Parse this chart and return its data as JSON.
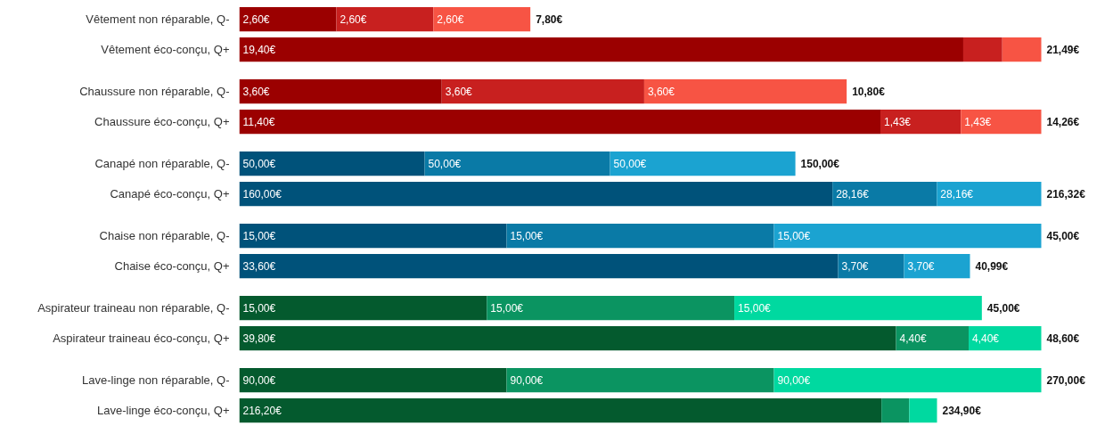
{
  "chart_data": [
    {
      "type": "bar",
      "orientation": "horizontal",
      "stacked": true,
      "tick_labels": "y",
      "categories": [
        "Vêtement non réparable, Q-",
        "Vêtement éco-conçu, Q+"
      ],
      "totals": [
        "7,80€",
        "21,49€"
      ],
      "series": [
        {
          "color": "#9b0000",
          "values": [
            2.6,
            19.4
          ],
          "value_labels": [
            "2,60€",
            "19,40€"
          ]
        },
        {
          "color": "#c8201f",
          "values": [
            2.6,
            1.045
          ],
          "value_labels": [
            "2,60€",
            null
          ]
        },
        {
          "color": "#f75444",
          "values": [
            2.6,
            1.045
          ],
          "value_labels": [
            "2,60€",
            null
          ]
        }
      ]
    },
    {
      "type": "bar",
      "orientation": "horizontal",
      "stacked": true,
      "tick_labels": "y",
      "categories": [
        "Chaussure non réparable, Q-",
        "Chaussure éco-conçu, Q+"
      ],
      "totals": [
        "10,80€",
        "14,26€"
      ],
      "series": [
        {
          "color": "#9b0000",
          "values": [
            3.6,
            11.4
          ],
          "value_labels": [
            "3,60€",
            "11,40€"
          ]
        },
        {
          "color": "#c8201f",
          "values": [
            3.6,
            1.43
          ],
          "value_labels": [
            "3,60€",
            "1,43€"
          ]
        },
        {
          "color": "#f75444",
          "values": [
            3.6,
            1.43
          ],
          "value_labels": [
            "3,60€",
            "1,43€"
          ]
        }
      ]
    },
    {
      "type": "bar",
      "orientation": "horizontal",
      "stacked": true,
      "tick_labels": "y",
      "categories": [
        "Canapé non réparable, Q-",
        "Canapé éco-conçu, Q+"
      ],
      "totals": [
        "150,00€",
        "216,32€"
      ],
      "series": [
        {
          "color": "#00527a",
          "values": [
            50,
            160
          ],
          "value_labels": [
            "50,00€",
            "160,00€"
          ]
        },
        {
          "color": "#0a7aa6",
          "values": [
            50,
            28.16
          ],
          "value_labels": [
            "50,00€",
            "28,16€"
          ]
        },
        {
          "color": "#1ba3d1",
          "values": [
            50,
            28.16
          ],
          "value_labels": [
            "50,00€",
            "28,16€"
          ]
        }
      ]
    },
    {
      "type": "bar",
      "orientation": "horizontal",
      "stacked": true,
      "tick_labels": "y",
      "categories": [
        "Chaise non réparable, Q-",
        "Chaise éco-conçu, Q+"
      ],
      "totals": [
        "45,00€",
        "40,99€"
      ],
      "series": [
        {
          "color": "#00527a",
          "values": [
            15,
            33.6
          ],
          "value_labels": [
            "15,00€",
            "33,60€"
          ]
        },
        {
          "color": "#0a7aa6",
          "values": [
            15,
            3.7
          ],
          "value_labels": [
            "15,00€",
            "3,70€"
          ]
        },
        {
          "color": "#1ba3d1",
          "values": [
            15,
            3.7
          ],
          "value_labels": [
            "15,00€",
            "3,70€"
          ]
        }
      ]
    },
    {
      "type": "bar",
      "orientation": "horizontal",
      "stacked": true,
      "tick_labels": "y",
      "categories": [
        "Aspirateur traineau non réparable, Q-",
        "Aspirateur traineau éco-conçu, Q+"
      ],
      "totals": [
        "45,00€",
        "48,60€"
      ],
      "series": [
        {
          "color": "#045a2e",
          "values": [
            15,
            39.8
          ],
          "value_labels": [
            "15,00€",
            "39,80€"
          ]
        },
        {
          "color": "#0b9461",
          "values": [
            15,
            4.4
          ],
          "value_labels": [
            "15,00€",
            "4,40€"
          ]
        },
        {
          "color": "#00d9a0",
          "values": [
            15,
            4.4
          ],
          "value_labels": [
            "15,00€",
            "4,40€"
          ]
        }
      ]
    },
    {
      "type": "bar",
      "orientation": "horizontal",
      "stacked": true,
      "tick_labels": "y",
      "categories": [
        "Lave-linge non réparable, Q-",
        "Lave-linge éco-conçu, Q+"
      ],
      "totals": [
        "270,00€",
        "234,90€"
      ],
      "series": [
        {
          "color": "#045a2e",
          "values": [
            90,
            216.2
          ],
          "value_labels": [
            "90,00€",
            "216,20€"
          ]
        },
        {
          "color": "#0b9461",
          "values": [
            90,
            9.35
          ],
          "value_labels": [
            "90,00€",
            null
          ]
        },
        {
          "color": "#00d9a0",
          "values": [
            90,
            9.35
          ],
          "value_labels": [
            "90,00€",
            null
          ]
        }
      ]
    }
  ]
}
